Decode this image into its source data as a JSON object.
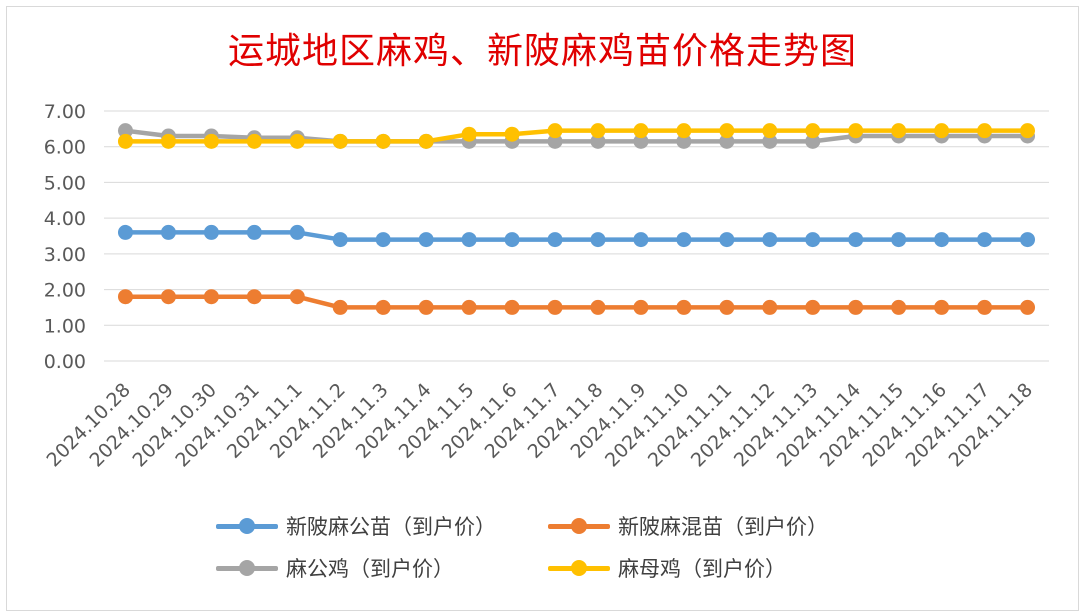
{
  "chart_data": {
    "type": "line",
    "title": "运城地区麻鸡、新陂麻鸡苗价格走势图",
    "categories": [
      "2024.10.28",
      "2024.10.29",
      "2024.10.30",
      "2024.10.31",
      "2024.11.1",
      "2024.11.2",
      "2024.11.3",
      "2024.11.4",
      "2024.11.5",
      "2024.11.6",
      "2024.11.7",
      "2024.11.8",
      "2024.11.9",
      "2024.11.10",
      "2024.11.11",
      "2024.11.12",
      "2024.11.13",
      "2024.11.14",
      "2024.11.15",
      "2024.11.16",
      "2024.11.17",
      "2024.11.18"
    ],
    "y_ticks": [
      "0.00",
      "1.00",
      "2.00",
      "3.00",
      "4.00",
      "5.00",
      "6.00",
      "7.00"
    ],
    "ylim": [
      0,
      7
    ],
    "grid": true,
    "legend_position": "bottom",
    "series": [
      {
        "name": "新陂麻公苗（到户价）",
        "color": "#5b9bd5",
        "values": [
          3.6,
          3.6,
          3.6,
          3.6,
          3.6,
          3.4,
          3.4,
          3.4,
          3.4,
          3.4,
          3.4,
          3.4,
          3.4,
          3.4,
          3.4,
          3.4,
          3.4,
          3.4,
          3.4,
          3.4,
          3.4,
          3.4
        ]
      },
      {
        "name": "新陂麻混苗（到户价）",
        "color": "#ed7d31",
        "values": [
          1.8,
          1.8,
          1.8,
          1.8,
          1.8,
          1.5,
          1.5,
          1.5,
          1.5,
          1.5,
          1.5,
          1.5,
          1.5,
          1.5,
          1.5,
          1.5,
          1.5,
          1.5,
          1.5,
          1.5,
          1.5,
          1.5
        ]
      },
      {
        "name": "麻公鸡（到户价）",
        "color": "#a5a5a5",
        "values": [
          6.45,
          6.3,
          6.3,
          6.25,
          6.25,
          6.15,
          6.15,
          6.15,
          6.15,
          6.15,
          6.15,
          6.15,
          6.15,
          6.15,
          6.15,
          6.15,
          6.15,
          6.3,
          6.3,
          6.3,
          6.3,
          6.3
        ]
      },
      {
        "name": "麻母鸡（到户价）",
        "color": "#ffc000",
        "values": [
          6.15,
          6.15,
          6.15,
          6.15,
          6.15,
          6.15,
          6.15,
          6.15,
          6.35,
          6.35,
          6.45,
          6.45,
          6.45,
          6.45,
          6.45,
          6.45,
          6.45,
          6.45,
          6.45,
          6.45,
          6.45,
          6.45
        ]
      }
    ]
  }
}
